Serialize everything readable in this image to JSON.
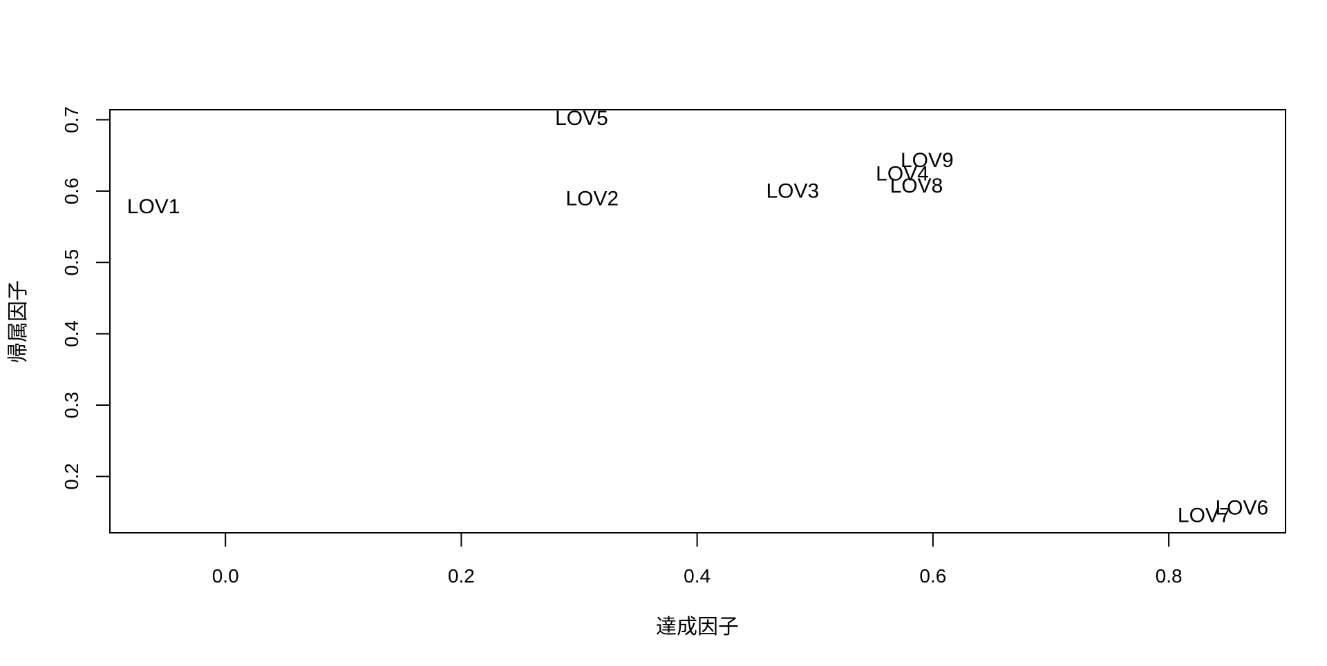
{
  "chart_data": {
    "type": "scatter",
    "title": "",
    "xlabel": "達成因子",
    "ylabel": "帰属因子",
    "xlim": [
      -0.098,
      0.899
    ],
    "ylim": [
      0.121,
      0.714
    ],
    "grid": false,
    "legend": "none",
    "x_ticks": [
      0.0,
      0.2,
      0.4,
      0.6,
      0.8
    ],
    "x_tick_labels": [
      "0.0",
      "0.2",
      "0.4",
      "0.6",
      "0.8"
    ],
    "y_ticks": [
      0.2,
      0.3,
      0.4,
      0.5,
      0.6,
      0.7
    ],
    "y_tick_labels": [
      "0.2",
      "0.3",
      "0.4",
      "0.5",
      "0.6",
      "0.7"
    ],
    "points": [
      {
        "label": "LOV1",
        "x": -0.061,
        "y": 0.578
      },
      {
        "label": "LOV2",
        "x": 0.311,
        "y": 0.589
      },
      {
        "label": "LOV3",
        "x": 0.481,
        "y": 0.6
      },
      {
        "label": "LOV4",
        "x": 0.574,
        "y": 0.624
      },
      {
        "label": "LOV5",
        "x": 0.302,
        "y": 0.702
      },
      {
        "label": "LOV6",
        "x": 0.862,
        "y": 0.156
      },
      {
        "label": "LOV7",
        "x": 0.83,
        "y": 0.145
      },
      {
        "label": "LOV8",
        "x": 0.586,
        "y": 0.607
      },
      {
        "label": "LOV9",
        "x": 0.595,
        "y": 0.643
      }
    ]
  }
}
